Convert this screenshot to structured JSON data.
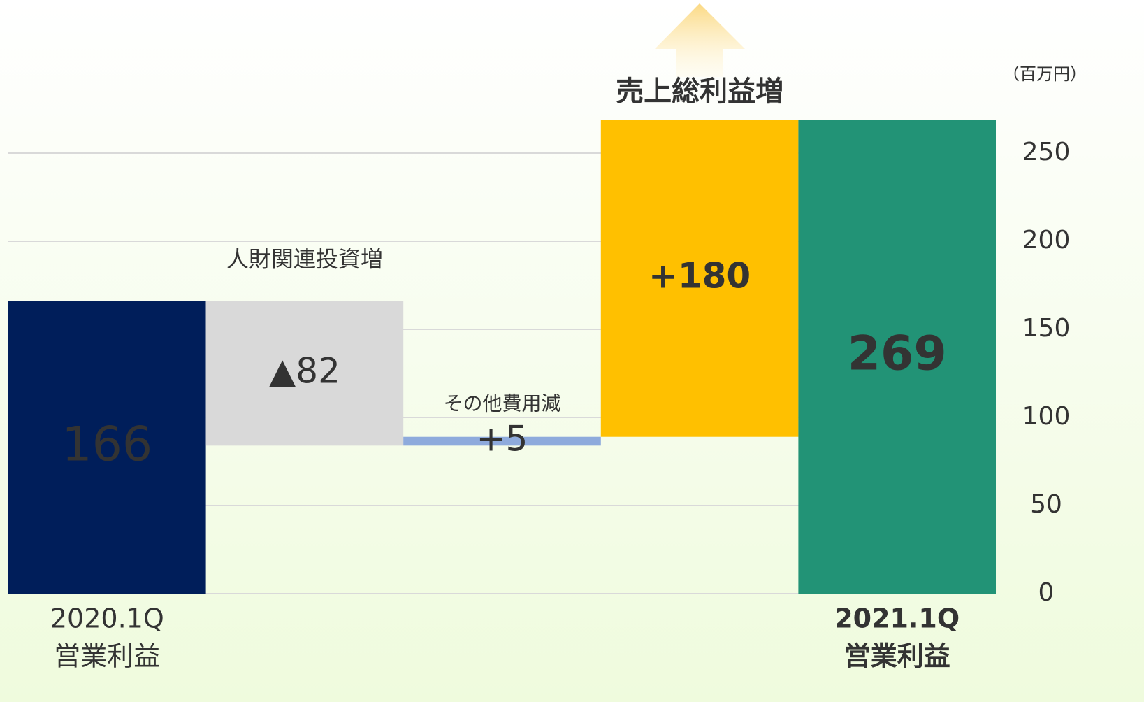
{
  "chart_data": {
    "type": "waterfall",
    "unit_label": "（百万円）",
    "categories": [
      [
        "2020.1Q",
        "営業利益"
      ],
      [
        "人財関連投資増"
      ],
      [
        "その他費用減"
      ],
      [
        "売上総利益増"
      ],
      [
        "2021.1Q",
        "営業利益"
      ]
    ],
    "measure": [
      "absolute",
      "relative",
      "relative",
      "relative",
      "total"
    ],
    "values": [
      166,
      -82,
      5,
      180,
      269
    ],
    "value_labels": [
      "166",
      "▲82",
      "+5",
      "+180",
      "269"
    ],
    "colors": [
      "#001e5a",
      "#d9d9d9",
      "#8eaadc",
      "#ffc000",
      "#229376"
    ],
    "ylim": [
      0,
      300
    ],
    "yticks": [
      0,
      50,
      100,
      150,
      200,
      250
    ],
    "grid": true
  }
}
